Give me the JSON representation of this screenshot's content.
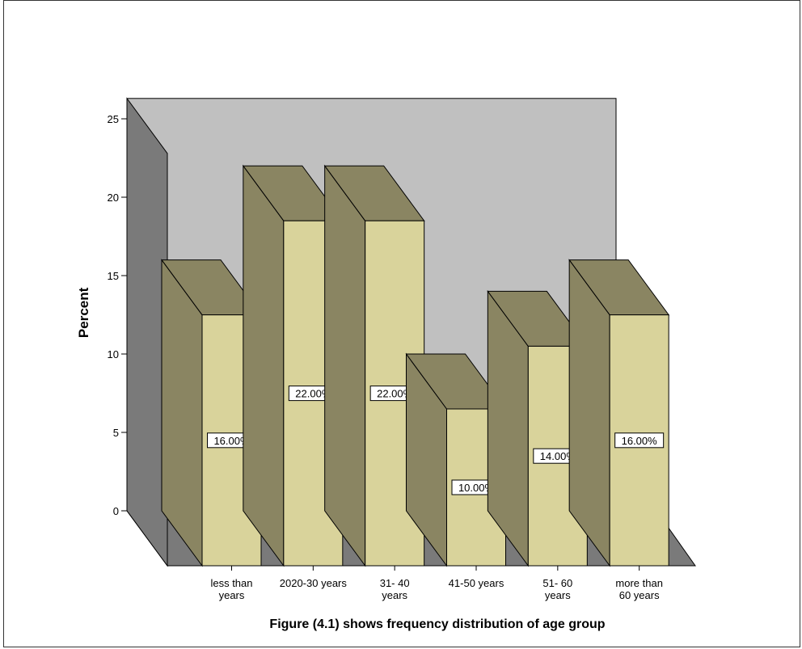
{
  "chart_data": {
    "type": "bar",
    "ylabel": "Percent",
    "ylim": [
      0,
      25
    ],
    "yticks": [
      0,
      5,
      10,
      15,
      20,
      25
    ],
    "categories": [
      [
        "less than",
        "years"
      ],
      [
        "2020-30 years"
      ],
      [
        "31- 40",
        "years"
      ],
      [
        "41-50 years"
      ],
      [
        "51- 60",
        "years"
      ],
      [
        "more than",
        "60 years"
      ]
    ],
    "values": [
      16,
      22,
      22,
      10,
      14,
      16
    ],
    "data_labels": [
      "16.00%",
      "22.00%",
      "22.00%",
      "10.00%",
      "14.00%",
      "16.00%"
    ],
    "footnote": "Figure (4.1) shows frequency distribution of age group",
    "grid": false,
    "legend": "none",
    "colors": {
      "bar_front": "#d9d39b",
      "bar_side": "#8a8562",
      "bar_top": "#8a8562",
      "back_wall": "#c0c0c0",
      "side_wall": "#7a7a7a",
      "floor": "#7a7a7a",
      "background": "#ffffff"
    }
  }
}
